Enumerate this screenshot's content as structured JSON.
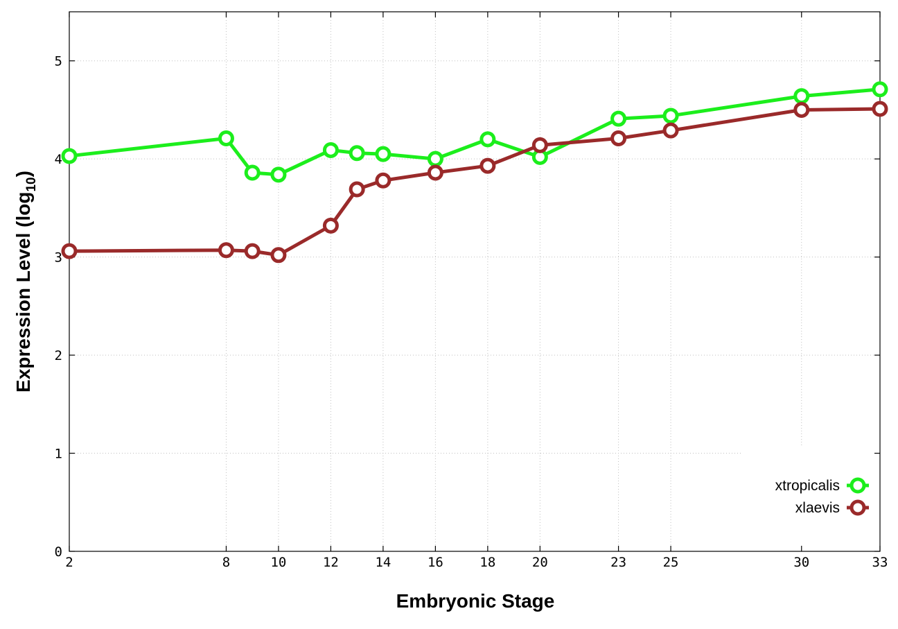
{
  "chart_data": {
    "type": "line",
    "xlabel": "Embryonic Stage",
    "ylabel_main": "Expression Level (log",
    "ylabel_sub": "10",
    "ylabel_close": ")",
    "x_ticks": [
      "2",
      "8",
      "10",
      "12",
      "14",
      "16",
      "18",
      "20",
      "23",
      "25",
      "30",
      "33"
    ],
    "x_tick_values": [
      2,
      8,
      10,
      12,
      14,
      16,
      18,
      20,
      23,
      25,
      30,
      33
    ],
    "y_ticks": [
      "0",
      "1",
      "2",
      "3",
      "4",
      "5"
    ],
    "y_tick_values": [
      0,
      1,
      2,
      3,
      4,
      5
    ],
    "xlim": [
      2,
      33
    ],
    "ylim": [
      0,
      5.5
    ],
    "grid": true,
    "legend_position": "bottom-right",
    "series": [
      {
        "name": "xtropicalis",
        "color": "#1cee1c",
        "x": [
          2,
          8,
          9,
          10,
          12,
          13,
          14,
          16,
          18,
          20,
          23,
          25,
          30,
          33
        ],
        "values": [
          4.03,
          4.21,
          3.86,
          3.84,
          4.09,
          4.06,
          4.05,
          4.0,
          4.2,
          4.02,
          4.41,
          4.44,
          4.64,
          4.71
        ]
      },
      {
        "name": "xlaevis",
        "color": "#9a2a2a",
        "x": [
          2,
          8,
          9,
          10,
          12,
          13,
          14,
          16,
          18,
          20,
          23,
          25,
          30,
          33
        ],
        "values": [
          3.06,
          3.07,
          3.06,
          3.02,
          3.32,
          3.69,
          3.78,
          3.86,
          3.93,
          4.14,
          4.21,
          4.29,
          4.5,
          4.51
        ]
      }
    ]
  }
}
